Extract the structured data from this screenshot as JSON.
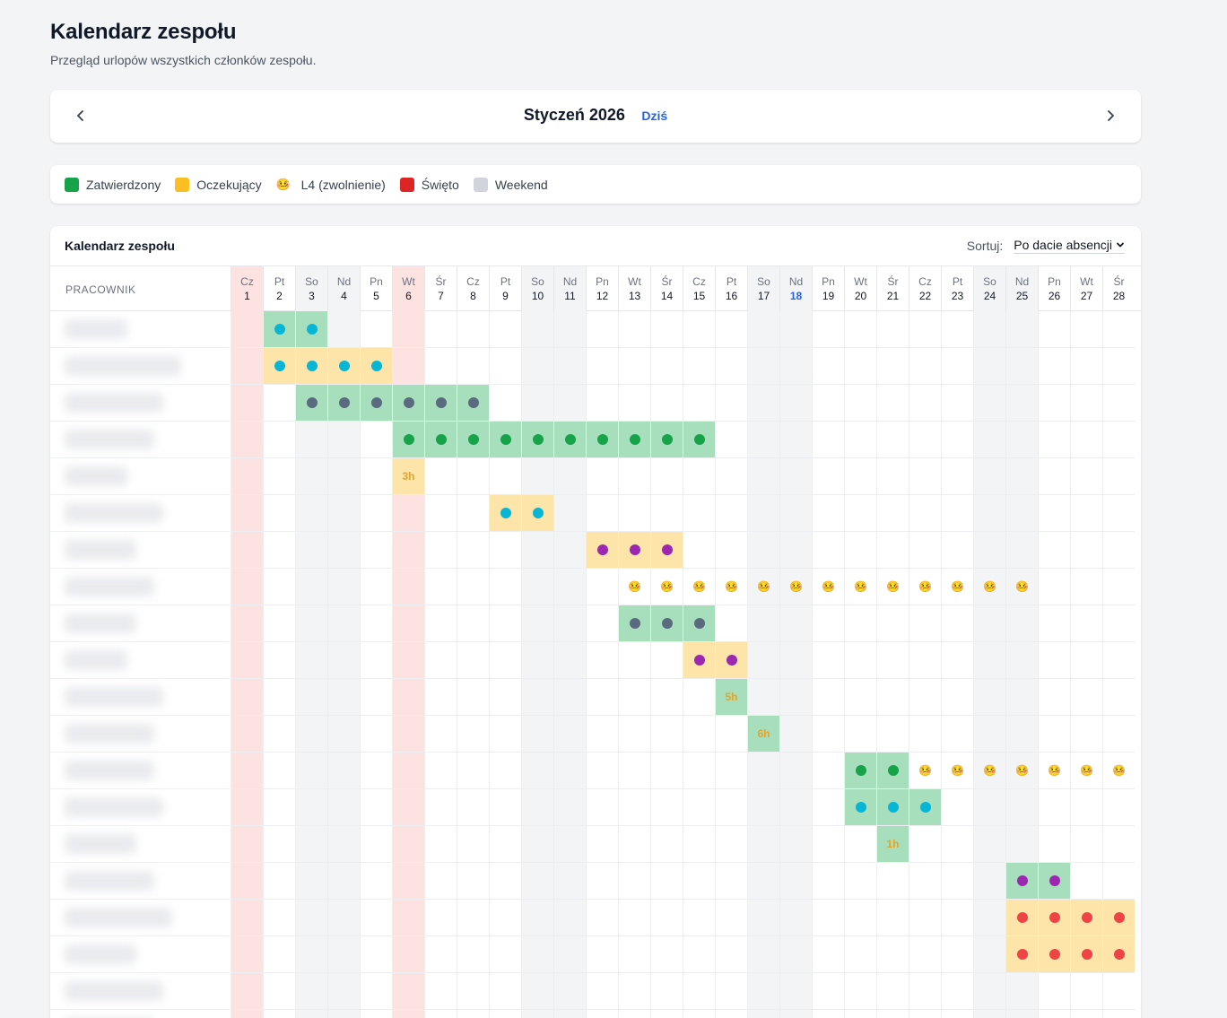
{
  "header": {
    "title": "Kalendarz zespołu",
    "subtitle": "Przegląd urlopów wszystkich członków zespołu."
  },
  "nav": {
    "month": "Styczeń 2026",
    "today": "Dziś"
  },
  "legend": [
    {
      "label": "Zatwierdzony",
      "type": "swatch",
      "color": "#16a34a"
    },
    {
      "label": "Oczekujący",
      "type": "swatch",
      "color": "#fbbf24"
    },
    {
      "label": "L4 (zwolnienie)",
      "type": "emoji",
      "icon": "🤒"
    },
    {
      "label": "Święto",
      "type": "swatch",
      "color": "#dc2626"
    },
    {
      "label": "Weekend",
      "type": "swatch",
      "color": "#d1d5db"
    }
  ],
  "calendar": {
    "title": "Kalendarz zespołu",
    "sort_label": "Sortuj:",
    "sort_value": "Po dacie absencji",
    "employee_header": "PRACOWNIK",
    "today_day": 18,
    "holidays": [
      1,
      6
    ],
    "days": [
      {
        "d": 1,
        "n": "Cz"
      },
      {
        "d": 2,
        "n": "Pt"
      },
      {
        "d": 3,
        "n": "So"
      },
      {
        "d": 4,
        "n": "Nd"
      },
      {
        "d": 5,
        "n": "Pn"
      },
      {
        "d": 6,
        "n": "Wt"
      },
      {
        "d": 7,
        "n": "Śr"
      },
      {
        "d": 8,
        "n": "Cz"
      },
      {
        "d": 9,
        "n": "Pt"
      },
      {
        "d": 10,
        "n": "So"
      },
      {
        "d": 11,
        "n": "Nd"
      },
      {
        "d": 12,
        "n": "Pn"
      },
      {
        "d": 13,
        "n": "Wt"
      },
      {
        "d": 14,
        "n": "Śr"
      },
      {
        "d": 15,
        "n": "Cz"
      },
      {
        "d": 16,
        "n": "Pt"
      },
      {
        "d": 17,
        "n": "So"
      },
      {
        "d": 18,
        "n": "Nd"
      },
      {
        "d": 19,
        "n": "Pn"
      },
      {
        "d": 20,
        "n": "Wt"
      },
      {
        "d": 21,
        "n": "Śr"
      },
      {
        "d": 22,
        "n": "Cz"
      },
      {
        "d": 23,
        "n": "Pt"
      },
      {
        "d": 24,
        "n": "So"
      },
      {
        "d": 25,
        "n": "Nd"
      },
      {
        "d": 26,
        "n": "Pn"
      },
      {
        "d": 27,
        "n": "Wt"
      },
      {
        "d": 28,
        "n": "Śr"
      }
    ],
    "colors": {
      "cyan": "#06b6d4",
      "slate": "#5b6b7f",
      "green": "#16a34a",
      "purple": "#9c27b0",
      "red": "#ef4444"
    },
    "rows": [
      {
        "blur": 70,
        "spans": [
          {
            "from": 2,
            "to": 3,
            "status": "approved",
            "color": "cyan"
          }
        ]
      },
      {
        "blur": 130,
        "spans": [
          {
            "from": 2,
            "to": 5,
            "status": "pending",
            "color": "cyan"
          }
        ]
      },
      {
        "blur": 110,
        "spans": [
          {
            "from": 3,
            "to": 8,
            "status": "approved",
            "color": "slate"
          }
        ]
      },
      {
        "blur": 100,
        "spans": [
          {
            "from": 6,
            "to": 15,
            "status": "approved",
            "color": "green"
          }
        ]
      },
      {
        "blur": 70,
        "spans": [
          {
            "from": 6,
            "to": 6,
            "status": "pending",
            "hours": "3h"
          }
        ]
      },
      {
        "blur": 110,
        "spans": [
          {
            "from": 9,
            "to": 10,
            "status": "pending",
            "color": "cyan"
          }
        ]
      },
      {
        "blur": 80,
        "spans": [
          {
            "from": 12,
            "to": 14,
            "status": "pending",
            "color": "purple"
          }
        ]
      },
      {
        "blur": 100,
        "spans": [
          {
            "from": 13,
            "to": 25,
            "status": "sick"
          }
        ]
      },
      {
        "blur": 80,
        "spans": [
          {
            "from": 13,
            "to": 15,
            "status": "approved",
            "color": "slate"
          }
        ]
      },
      {
        "blur": 70,
        "spans": [
          {
            "from": 15,
            "to": 16,
            "status": "pending",
            "color": "purple"
          }
        ]
      },
      {
        "blur": 110,
        "spans": [
          {
            "from": 16,
            "to": 16,
            "status": "approved",
            "hours": "5h"
          }
        ]
      },
      {
        "blur": 100,
        "spans": [
          {
            "from": 17,
            "to": 17,
            "status": "approved",
            "hours": "6h"
          }
        ]
      },
      {
        "blur": 100,
        "spans": [
          {
            "from": 20,
            "to": 21,
            "status": "approved",
            "color": "green"
          },
          {
            "from": 22,
            "to": 28,
            "status": "sick"
          }
        ]
      },
      {
        "blur": 110,
        "spans": [
          {
            "from": 20,
            "to": 22,
            "status": "approved",
            "color": "cyan"
          }
        ]
      },
      {
        "blur": 80,
        "spans": [
          {
            "from": 21,
            "to": 21,
            "status": "approved",
            "hours": "1h"
          }
        ]
      },
      {
        "blur": 100,
        "spans": [
          {
            "from": 25,
            "to": 26,
            "status": "approved",
            "color": "purple"
          }
        ]
      },
      {
        "blur": 120,
        "spans": [
          {
            "from": 25,
            "to": 28,
            "status": "pending",
            "color": "red"
          }
        ]
      },
      {
        "blur": 80,
        "spans": [
          {
            "from": 25,
            "to": 28,
            "status": "pending",
            "color": "red"
          }
        ]
      },
      {
        "blur": 110,
        "spans": []
      },
      {
        "blur": 100,
        "spans": []
      }
    ]
  }
}
